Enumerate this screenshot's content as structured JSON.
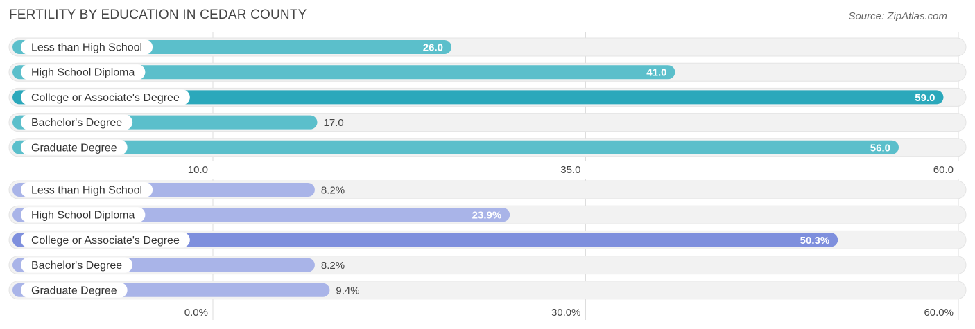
{
  "title": "FERTILITY BY EDUCATION IN CEDAR COUNTY",
  "source": "Source: ZipAtlas.com",
  "colors": {
    "top_bar": "#5BBFCB",
    "top_bar_highlight": "#2BA8BB",
    "bottom_bar": "#A9B4E8",
    "bottom_bar_highlight": "#7E8FDD",
    "track": "#F2F2F2",
    "grid": "#DDDDDD"
  },
  "chart_data": [
    {
      "type": "bar",
      "orientation": "horizontal",
      "categories": [
        "Less than High School",
        "High School Diploma",
        "College or Associate's Degree",
        "Bachelor's Degree",
        "Graduate Degree"
      ],
      "values": [
        26.0,
        41.0,
        59.0,
        17.0,
        56.0
      ],
      "value_labels": [
        "26.0",
        "41.0",
        "59.0",
        "17.0",
        "56.0"
      ],
      "xlim": [
        10.0,
        60.0
      ],
      "ticks": [
        10.0,
        35.0,
        60.0
      ],
      "tick_labels": [
        "10.0",
        "35.0",
        "60.0"
      ],
      "grid": true
    },
    {
      "type": "bar",
      "orientation": "horizontal",
      "categories": [
        "Less than High School",
        "High School Diploma",
        "College or Associate's Degree",
        "Bachelor's Degree",
        "Graduate Degree"
      ],
      "values": [
        8.2,
        23.9,
        50.3,
        8.2,
        9.4
      ],
      "value_labels": [
        "8.2%",
        "23.9%",
        "50.3%",
        "8.2%",
        "9.4%"
      ],
      "xlim": [
        0.0,
        60.0
      ],
      "ticks": [
        0.0,
        30.0,
        60.0
      ],
      "tick_labels": [
        "0.0%",
        "30.0%",
        "60.0%"
      ],
      "grid": true
    }
  ]
}
